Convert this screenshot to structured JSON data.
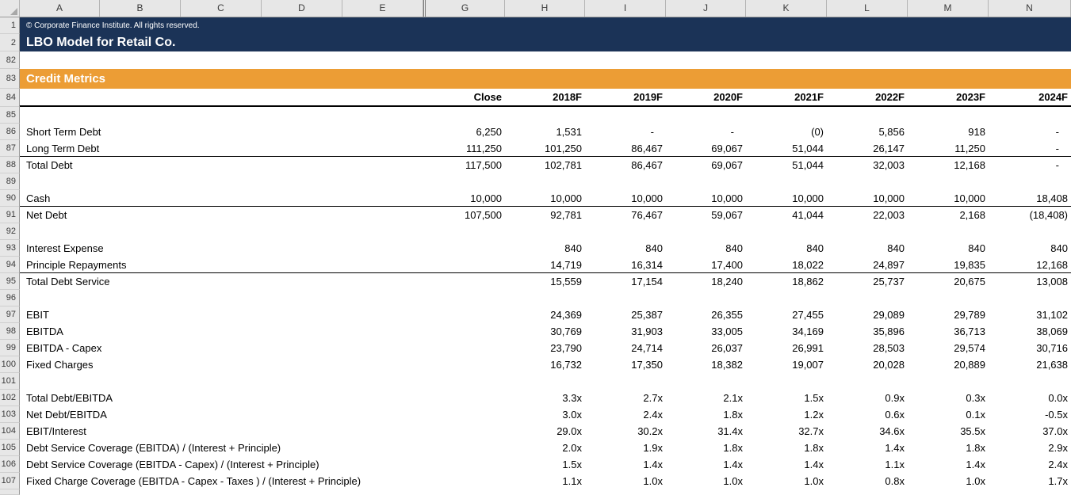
{
  "app": {
    "name": "spreadsheet-workbook"
  },
  "columns": [
    "A",
    "B",
    "C",
    "D",
    "E",
    "G",
    "H",
    "I",
    "J",
    "K",
    "L",
    "M",
    "N"
  ],
  "header": {
    "copyright": "© Corporate Finance Institute. All rights reserved.",
    "title": "LBO Model for Retail Co."
  },
  "section_title": "Credit Metrics",
  "colors": {
    "banner_navy": "#1b3357",
    "section_orange": "#ec9d35",
    "header_gray": "#e7e7e7",
    "rule_black": "#000000"
  },
  "rows": [
    {
      "num": "1",
      "type": "copyright",
      "text": "© Corporate Finance Institute. All rights reserved."
    },
    {
      "num": "2",
      "type": "title",
      "text": "LBO Model for Retail Co."
    },
    {
      "num": "82",
      "type": "blank"
    },
    {
      "num": "83",
      "type": "section",
      "text": "Credit Metrics"
    },
    {
      "num": "84",
      "type": "period_header",
      "values": [
        "Close",
        "2018F",
        "2019F",
        "2020F",
        "2021F",
        "2022F",
        "2023F",
        "2024F"
      ]
    },
    {
      "num": "85",
      "type": "blank"
    },
    {
      "num": "86",
      "type": "data",
      "label": "Short Term Debt",
      "values": [
        "6,250",
        "1,531",
        "-",
        "-",
        "(0)",
        "5,856",
        "918",
        "-"
      ]
    },
    {
      "num": "87",
      "type": "data",
      "label": "Long Term Debt",
      "underline": true,
      "values": [
        "111,250",
        "101,250",
        "86,467",
        "69,067",
        "51,044",
        "26,147",
        "11,250",
        "-"
      ]
    },
    {
      "num": "88",
      "type": "data",
      "label": "Total Debt",
      "values": [
        "117,500",
        "102,781",
        "86,467",
        "69,067",
        "51,044",
        "32,003",
        "12,168",
        "-"
      ]
    },
    {
      "num": "89",
      "type": "blank"
    },
    {
      "num": "90",
      "type": "data",
      "label": "Cash",
      "underline": true,
      "values": [
        "10,000",
        "10,000",
        "10,000",
        "10,000",
        "10,000",
        "10,000",
        "10,000",
        "18,408"
      ]
    },
    {
      "num": "91",
      "type": "data",
      "label": "Net Debt",
      "values": [
        "107,500",
        "92,781",
        "76,467",
        "59,067",
        "41,044",
        "22,003",
        "2,168",
        "(18,408)"
      ]
    },
    {
      "num": "92",
      "type": "blank"
    },
    {
      "num": "93",
      "type": "data",
      "label": "Interest Expense",
      "values": [
        "",
        "840",
        "840",
        "840",
        "840",
        "840",
        "840",
        "840"
      ]
    },
    {
      "num": "94",
      "type": "data",
      "label": "Principle Repayments",
      "underline": true,
      "values": [
        "",
        "14,719",
        "16,314",
        "17,400",
        "18,022",
        "24,897",
        "19,835",
        "12,168"
      ]
    },
    {
      "num": "95",
      "type": "data",
      "label": "Total Debt Service",
      "values": [
        "",
        "15,559",
        "17,154",
        "18,240",
        "18,862",
        "25,737",
        "20,675",
        "13,008"
      ]
    },
    {
      "num": "96",
      "type": "blank"
    },
    {
      "num": "97",
      "type": "data",
      "label": "EBIT",
      "values": [
        "",
        "24,369",
        "25,387",
        "26,355",
        "27,455",
        "29,089",
        "29,789",
        "31,102"
      ]
    },
    {
      "num": "98",
      "type": "data",
      "label": "EBITDA",
      "values": [
        "",
        "30,769",
        "31,903",
        "33,005",
        "34,169",
        "35,896",
        "36,713",
        "38,069"
      ]
    },
    {
      "num": "99",
      "type": "data",
      "label": "EBITDA - Capex",
      "values": [
        "",
        "23,790",
        "24,714",
        "26,037",
        "26,991",
        "28,503",
        "29,574",
        "30,716"
      ]
    },
    {
      "num": "100",
      "type": "data",
      "label": "Fixed Charges",
      "values": [
        "",
        "16,732",
        "17,350",
        "18,382",
        "19,007",
        "20,028",
        "20,889",
        "21,638"
      ]
    },
    {
      "num": "101",
      "type": "blank"
    },
    {
      "num": "102",
      "type": "data",
      "label": "Total Debt/EBITDA",
      "values": [
        "",
        "3.3x",
        "2.7x",
        "2.1x",
        "1.5x",
        "0.9x",
        "0.3x",
        "0.0x"
      ]
    },
    {
      "num": "103",
      "type": "data",
      "label": "Net Debt/EBITDA",
      "values": [
        "",
        "3.0x",
        "2.4x",
        "1.8x",
        "1.2x",
        "0.6x",
        "0.1x",
        "-0.5x"
      ]
    },
    {
      "num": "104",
      "type": "data",
      "label": "EBIT/Interest",
      "values": [
        "",
        "29.0x",
        "30.2x",
        "31.4x",
        "32.7x",
        "34.6x",
        "35.5x",
        "37.0x"
      ]
    },
    {
      "num": "105",
      "type": "data",
      "label": "Debt Service Coverage (EBITDA) / (Interest + Principle)",
      "values": [
        "",
        "2.0x",
        "1.9x",
        "1.8x",
        "1.8x",
        "1.4x",
        "1.8x",
        "2.9x"
      ]
    },
    {
      "num": "106",
      "type": "data",
      "label": "Debt Service Coverage (EBITDA - Capex) / (Interest + Principle)",
      "values": [
        "",
        "1.5x",
        "1.4x",
        "1.4x",
        "1.4x",
        "1.1x",
        "1.4x",
        "2.4x"
      ]
    },
    {
      "num": "107",
      "type": "data",
      "label": "Fixed Charge Coverage (EBITDA - Capex - Taxes ) / (Interest + Principle)",
      "values": [
        "",
        "1.1x",
        "1.0x",
        "1.0x",
        "1.0x",
        "0.8x",
        "1.0x",
        "1.7x"
      ]
    }
  ]
}
